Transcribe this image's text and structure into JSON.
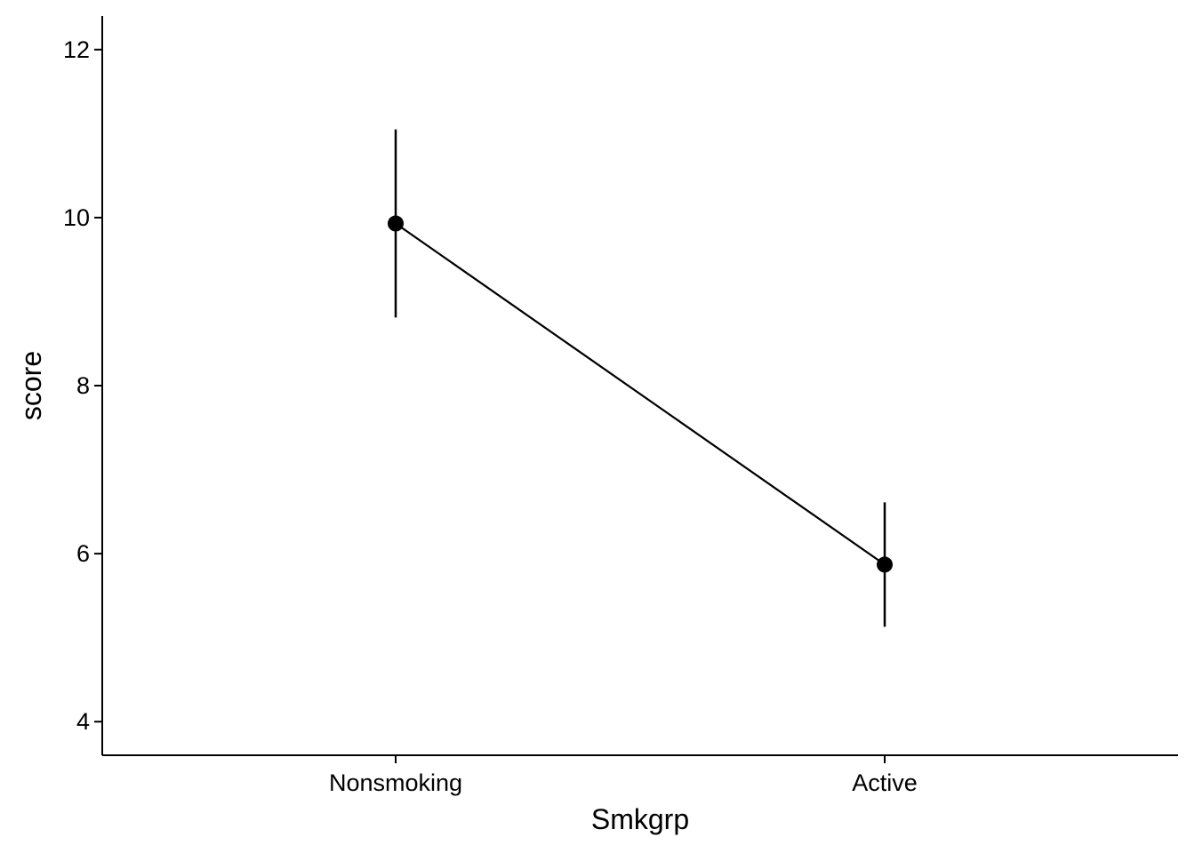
{
  "chart_data": {
    "type": "line",
    "title": "",
    "xlabel": "Smkgrp",
    "ylabel": "score",
    "categories": [
      "Nonsmoking",
      "Active"
    ],
    "series": [
      {
        "values": [
          9.93,
          5.87
        ],
        "error_low": [
          8.81,
          5.13
        ],
        "error_high": [
          11.05,
          6.61
        ]
      }
    ],
    "yticks": [
      4,
      6,
      8,
      10,
      12
    ],
    "ylim": [
      3.6,
      12.4
    ],
    "grid": false,
    "legend": "none",
    "color": "#000000"
  }
}
